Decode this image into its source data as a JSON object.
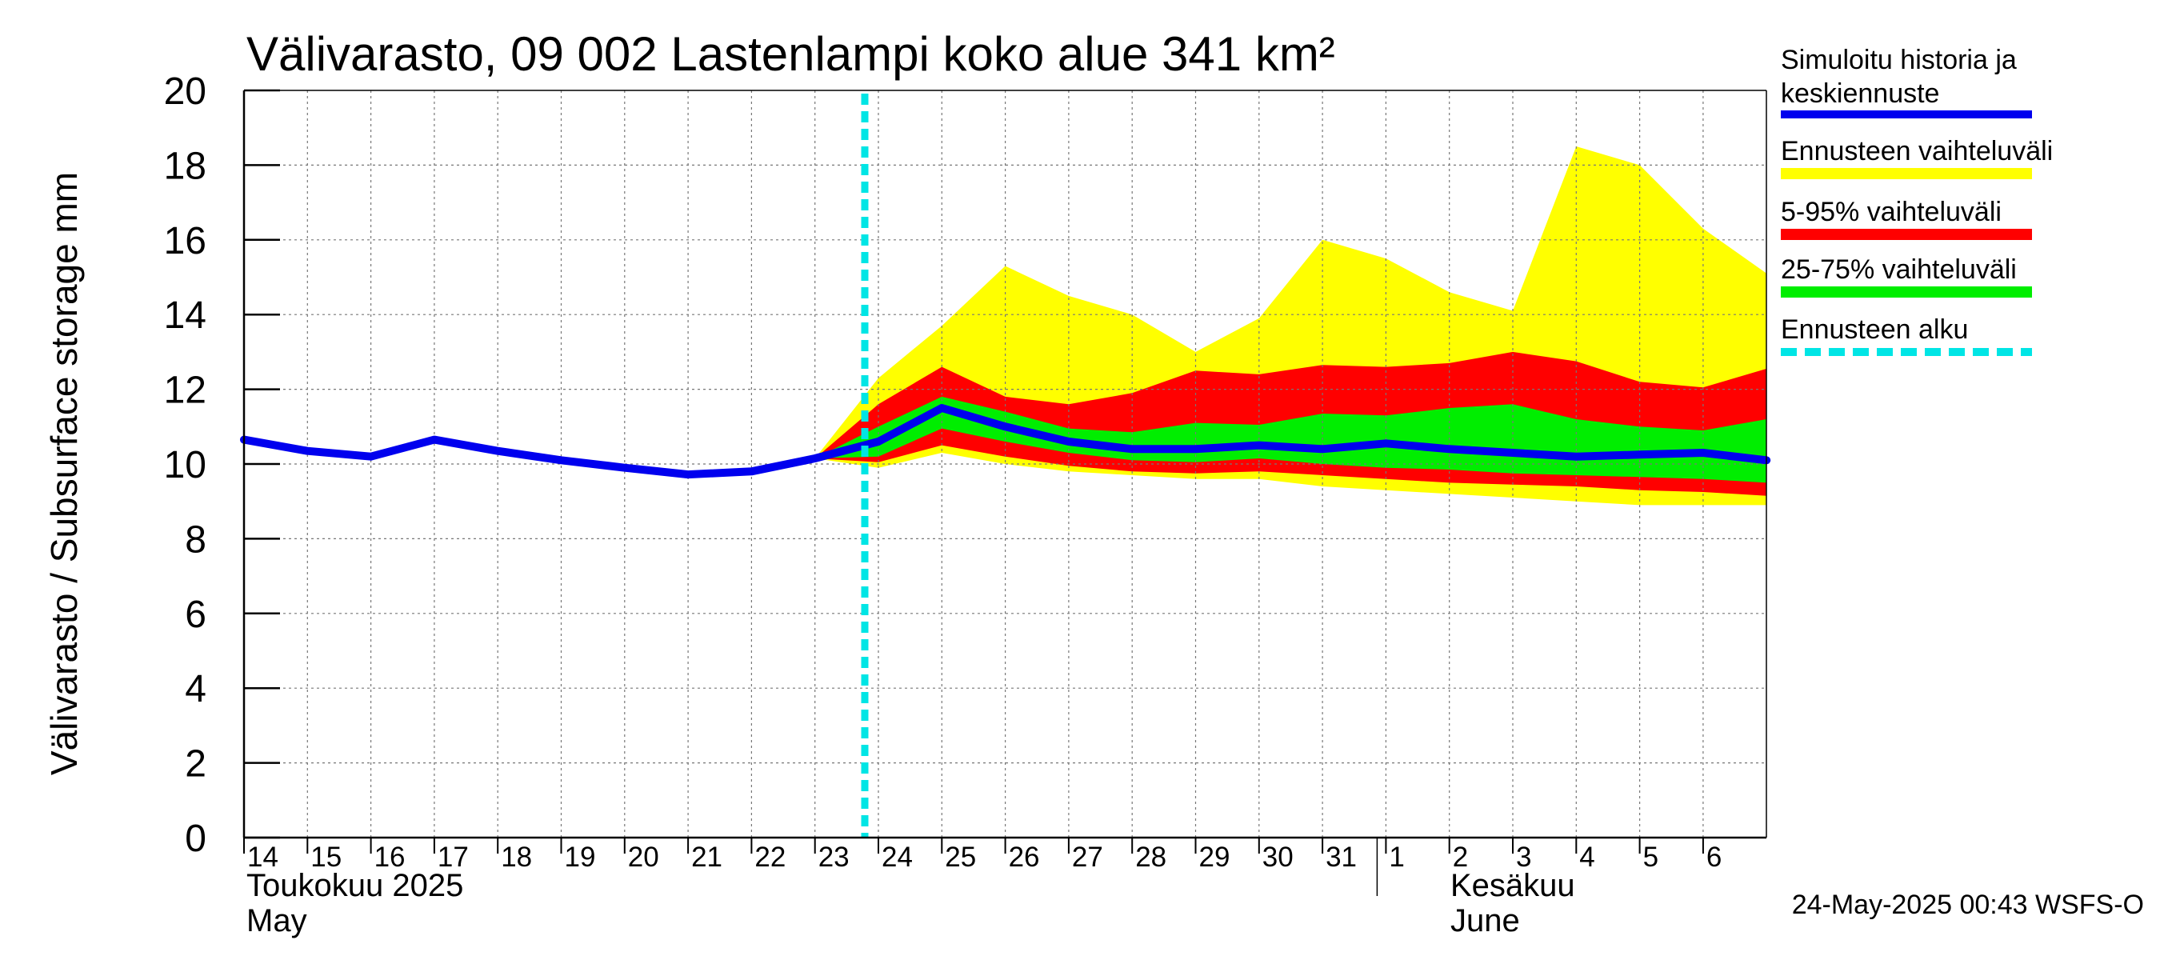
{
  "chart_data": {
    "type": "area",
    "title": "Välivarasto, 09 002 Lastenlampi koko alue 341 km²",
    "ylabel": "Välivarasto / Subsurface storage  mm",
    "ylim": [
      0,
      20
    ],
    "yticks": [
      "0",
      "2",
      "4",
      "6",
      "8",
      "10",
      "12",
      "14",
      "16",
      "18",
      "20"
    ],
    "x_dates": [
      "2025-05-14",
      "2025-05-15",
      "2025-05-16",
      "2025-05-17",
      "2025-05-18",
      "2025-05-19",
      "2025-05-20",
      "2025-05-21",
      "2025-05-22",
      "2025-05-23",
      "2025-05-24",
      "2025-05-25",
      "2025-05-26",
      "2025-05-27",
      "2025-05-28",
      "2025-05-29",
      "2025-05-30",
      "2025-05-31",
      "2025-06-01",
      "2025-06-02",
      "2025-06-03",
      "2025-06-04",
      "2025-06-05",
      "2025-06-06"
    ],
    "x_tick_labels": [
      "14",
      "15",
      "16",
      "17",
      "18",
      "19",
      "20",
      "21",
      "22",
      "23",
      "24",
      "25",
      "26",
      "27",
      "28",
      "29",
      "30",
      "31",
      "1",
      "2",
      "3",
      "4",
      "5",
      "6"
    ],
    "month_labels": [
      {
        "line1": "Toukokuu  2025",
        "line2": "May"
      },
      {
        "line1": "Kesäkuu",
        "line2": "June"
      }
    ],
    "forecast_start": "2025-05-24",
    "grid": true,
    "legend_position": "right",
    "series": [
      {
        "name": "Simuloitu historia ja keskiennuste",
        "color": "#0000ee",
        "x": [
          "2025-05-14",
          "2025-05-15",
          "2025-05-16",
          "2025-05-17",
          "2025-05-18",
          "2025-05-19",
          "2025-05-20",
          "2025-05-21",
          "2025-05-22",
          "2025-05-23",
          "2025-05-24",
          "2025-05-25",
          "2025-05-26",
          "2025-05-27",
          "2025-05-28",
          "2025-05-29",
          "2025-05-30",
          "2025-05-31",
          "2025-06-01",
          "2025-06-02",
          "2025-06-03",
          "2025-06-04",
          "2025-06-05",
          "2025-06-06",
          "2025-06-07"
        ],
        "values": [
          10.65,
          10.35,
          10.2,
          10.65,
          10.35,
          10.1,
          9.9,
          9.72,
          9.8,
          10.15,
          10.6,
          11.5,
          11.0,
          10.6,
          10.4,
          10.4,
          10.5,
          10.4,
          10.55,
          10.4,
          10.3,
          10.2,
          10.25,
          10.3,
          10.1
        ]
      },
      {
        "name": "Ennusteen vaihteluväli",
        "color": "#ffff00",
        "x": [
          "2025-05-23",
          "2025-05-24",
          "2025-05-25",
          "2025-05-26",
          "2025-05-27",
          "2025-05-28",
          "2025-05-29",
          "2025-05-30",
          "2025-05-31",
          "2025-06-01",
          "2025-06-02",
          "2025-06-03",
          "2025-06-04",
          "2025-06-05",
          "2025-06-06",
          "2025-06-07"
        ],
        "upper": [
          10.15,
          12.3,
          13.7,
          15.3,
          14.5,
          14.0,
          13.0,
          13.9,
          16.0,
          15.5,
          14.6,
          14.1,
          18.5,
          18.0,
          16.3,
          15.1
        ],
        "lower": [
          10.15,
          9.9,
          10.3,
          10.0,
          9.8,
          9.7,
          9.6,
          9.6,
          9.4,
          9.3,
          9.2,
          9.1,
          9.0,
          8.9,
          8.9,
          8.9
        ]
      },
      {
        "name": "5-95% vaihteluväli",
        "color": "#ff0000",
        "x": [
          "2025-05-23",
          "2025-05-24",
          "2025-05-25",
          "2025-05-26",
          "2025-05-27",
          "2025-05-28",
          "2025-05-29",
          "2025-05-30",
          "2025-05-31",
          "2025-06-01",
          "2025-06-02",
          "2025-06-03",
          "2025-06-04",
          "2025-06-05",
          "2025-06-06",
          "2025-06-07"
        ],
        "upper": [
          10.15,
          11.6,
          12.6,
          11.8,
          11.6,
          11.9,
          12.5,
          12.4,
          12.65,
          12.6,
          12.7,
          13.0,
          12.75,
          12.2,
          12.05,
          12.55
        ],
        "lower": [
          10.15,
          10.05,
          10.5,
          10.2,
          9.95,
          9.8,
          9.75,
          9.8,
          9.7,
          9.6,
          9.5,
          9.45,
          9.4,
          9.3,
          9.25,
          9.15
        ]
      },
      {
        "name": "25-75% vaihteluväli",
        "color": "#00ee00",
        "x": [
          "2025-05-23",
          "2025-05-24",
          "2025-05-25",
          "2025-05-26",
          "2025-05-27",
          "2025-05-28",
          "2025-05-29",
          "2025-05-30",
          "2025-05-31",
          "2025-06-01",
          "2025-06-02",
          "2025-06-03",
          "2025-06-04",
          "2025-06-05",
          "2025-06-06",
          "2025-06-07"
        ],
        "upper": [
          10.15,
          11.0,
          11.8,
          11.4,
          10.95,
          10.85,
          11.1,
          11.05,
          11.35,
          11.3,
          11.5,
          11.6,
          11.2,
          11.0,
          10.9,
          11.2
        ],
        "lower": [
          10.15,
          10.2,
          10.95,
          10.6,
          10.3,
          10.1,
          10.05,
          10.15,
          10.0,
          9.9,
          9.85,
          9.75,
          9.7,
          9.65,
          9.6,
          9.5
        ]
      },
      {
        "name": "Ennusteen alku",
        "color": "#00e5e5",
        "x": [
          "2025-05-24"
        ]
      }
    ]
  },
  "legend": {
    "items": [
      {
        "line1": "Simuloitu historia ja",
        "line2": "keskiennuste",
        "color": "#0000ee",
        "style": "solid"
      },
      {
        "line1": "Ennusteen vaihteluväli",
        "line2": "",
        "color": "#ffff00",
        "style": "solid"
      },
      {
        "line1": "5-95% vaihteluväli",
        "line2": "",
        "color": "#ff0000",
        "style": "solid"
      },
      {
        "line1": "25-75% vaihteluväli",
        "line2": "",
        "color": "#00ee00",
        "style": "solid"
      },
      {
        "line1": "Ennusteen alku",
        "line2": "",
        "color": "#00e5e5",
        "style": "dashed"
      }
    ]
  },
  "footer": "24-May-2025 00:43 WSFS-O"
}
